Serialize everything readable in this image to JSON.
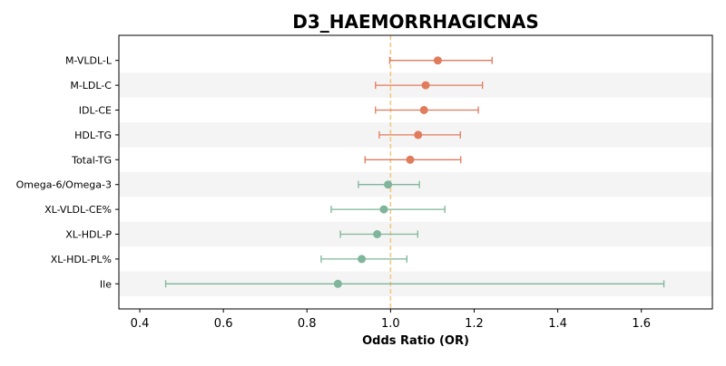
{
  "chart_data": {
    "type": "scatter",
    "title": "D3_HAEMORRHAGICNAS",
    "xlabel": "Odds Ratio (OR)",
    "ylabel": "",
    "xlim": [
      0.35,
      1.77
    ],
    "xticks": [
      "0.4",
      "0.6",
      "0.8",
      "1.0",
      "1.2",
      "1.4",
      "1.6"
    ],
    "xtick_values": [
      0.4,
      0.6,
      0.8,
      1.0,
      1.2,
      1.4,
      1.6
    ],
    "reference_line": 1.0,
    "reference_color": "#f2c67c",
    "grid": false,
    "legend": "none",
    "alternating_row_color": "#f4f4f4",
    "colors": {
      "positive": "#e07b5c",
      "negative": "#7fb59a"
    },
    "rows": [
      {
        "label": "M-VLDL-L",
        "or": 1.113,
        "lo": 0.998,
        "hi": 1.243,
        "group": "positive"
      },
      {
        "label": "M-LDL-C",
        "or": 1.084,
        "lo": 0.964,
        "hi": 1.22,
        "group": "positive"
      },
      {
        "label": "IDL-CE",
        "or": 1.08,
        "lo": 0.964,
        "hi": 1.21,
        "group": "positive"
      },
      {
        "label": "HDL-TG",
        "or": 1.066,
        "lo": 0.973,
        "hi": 1.167,
        "group": "positive"
      },
      {
        "label": "Total-TG",
        "or": 1.047,
        "lo": 0.939,
        "hi": 1.168,
        "group": "positive"
      },
      {
        "label": "Omega-6/Omega-3",
        "or": 0.994,
        "lo": 0.923,
        "hi": 1.069,
        "group": "negative"
      },
      {
        "label": "XL-VLDL-CE%",
        "or": 0.984,
        "lo": 0.858,
        "hi": 1.13,
        "group": "negative"
      },
      {
        "label": "XL-HDL-P",
        "or": 0.968,
        "lo": 0.88,
        "hi": 1.065,
        "group": "negative"
      },
      {
        "label": "XL-HDL-PL%",
        "or": 0.931,
        "lo": 0.834,
        "hi": 1.039,
        "group": "negative"
      },
      {
        "label": "Ile",
        "or": 0.874,
        "lo": 0.462,
        "hi": 1.654,
        "group": "negative"
      }
    ]
  }
}
